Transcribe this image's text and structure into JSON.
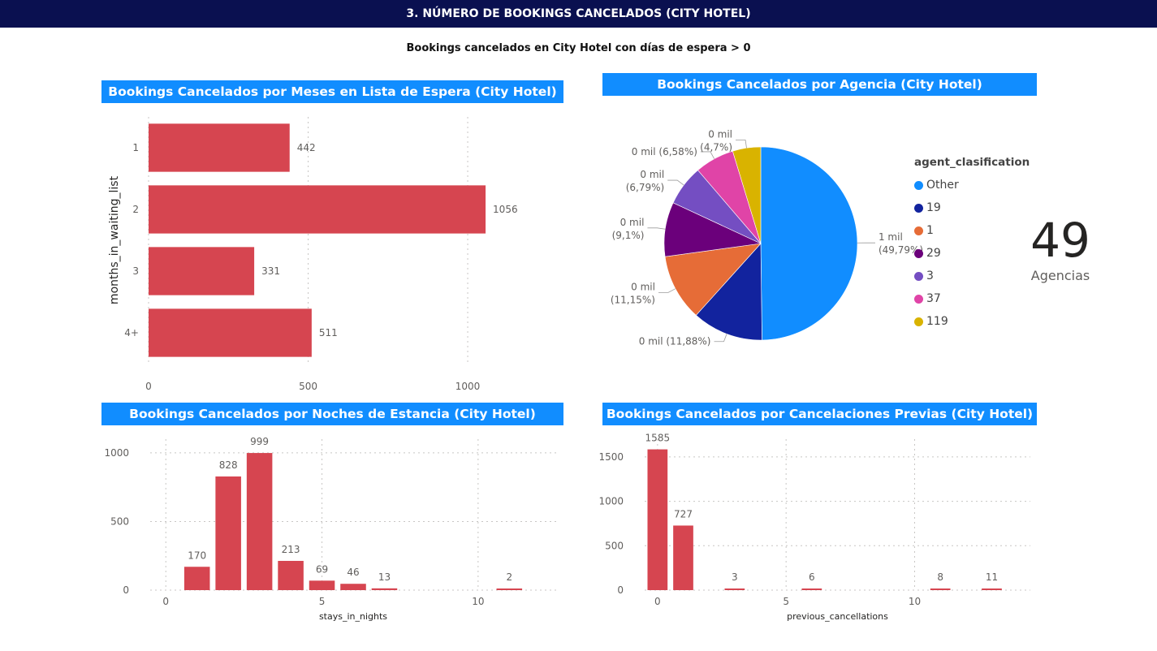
{
  "header": {
    "title": "3. NÚMERO DE BOOKINGS CANCELADOS (CITY HOTEL)",
    "subtitle": "Bookings cancelados en City Hotel con días de espera > 0"
  },
  "kpi": {
    "value": "49",
    "label": "Agencias"
  },
  "chart_data": [
    {
      "id": "waiting",
      "type": "bar",
      "orientation": "horizontal",
      "title": "Bookings Cancelados por Meses en Lista de Espera (City Hotel)",
      "ylabel": "months_in_waiting_list",
      "xlabel": "",
      "categories": [
        "1",
        "2",
        "3",
        "4+"
      ],
      "values": [
        442,
        1056,
        331,
        511
      ],
      "xlim": [
        0,
        1150
      ],
      "xticks": [
        0,
        500,
        1000
      ],
      "grid": true,
      "color": "#d64550"
    },
    {
      "id": "agency",
      "type": "pie",
      "title": "Bookings Cancelados por Agencia (City Hotel)",
      "legend_title": "agent_clasification",
      "legend_position": "right",
      "slices": [
        {
          "name": "Other",
          "pct": 49.79,
          "label": "1 mil",
          "pct_label": "(49,79%)",
          "color": "#118dff"
        },
        {
          "name": "19",
          "pct": 11.88,
          "label": "0 mil (11,88%)",
          "pct_label": "",
          "color": "#12239e"
        },
        {
          "name": "1",
          "pct": 11.15,
          "label": "0 mil",
          "pct_label": "(11,15%)",
          "color": "#e66c37"
        },
        {
          "name": "29",
          "pct": 9.1,
          "label": "0 mil",
          "pct_label": "(9,1%)",
          "color": "#6b007b"
        },
        {
          "name": "3",
          "pct": 6.79,
          "label": "0 mil",
          "pct_label": "(6,79%)",
          "color": "#744ec2"
        },
        {
          "name": "37",
          "pct": 6.58,
          "label": "0 mil (6,58%)",
          "pct_label": "",
          "color": "#e044a7"
        },
        {
          "name": "119",
          "pct": 4.7,
          "label": "0 mil",
          "pct_label": "(4,7%)",
          "color": "#d9b300"
        }
      ]
    },
    {
      "id": "nights",
      "type": "bar",
      "title": "Bookings Cancelados por Noches de Estancia (City Hotel)",
      "xlabel": "stays_in_nights",
      "ylabel": "",
      "x": [
        1,
        2,
        3,
        4,
        5,
        6,
        7,
        11
      ],
      "values": [
        170,
        828,
        999,
        213,
        69,
        46,
        13,
        2
      ],
      "xlim": [
        -0.5,
        12.5
      ],
      "ylim": [
        0,
        1100
      ],
      "xticks": [
        0,
        5,
        10
      ],
      "yticks": [
        0,
        500,
        1000
      ],
      "grid": true,
      "color": "#d64550"
    },
    {
      "id": "previous",
      "type": "bar",
      "title": "Bookings Cancelados por Cancelaciones Previas (City Hotel)",
      "xlabel": "previous_cancellations",
      "ylabel": "",
      "x": [
        0,
        1,
        3,
        6,
        11,
        13
      ],
      "values": [
        1585,
        727,
        3,
        6,
        8,
        11
      ],
      "xlim": [
        -0.5,
        14.5
      ],
      "ylim": [
        0,
        1700
      ],
      "xticks": [
        0,
        5,
        10
      ],
      "yticks": [
        0,
        500,
        1000,
        1500
      ],
      "grid": true,
      "color": "#d64550"
    }
  ]
}
